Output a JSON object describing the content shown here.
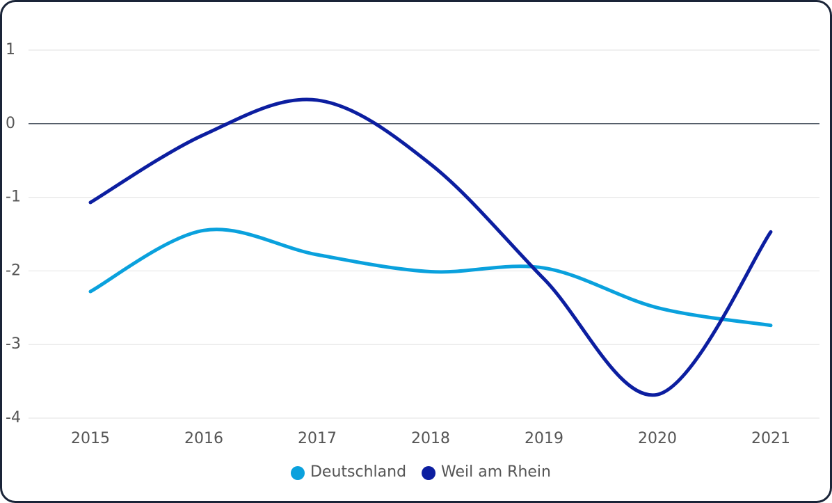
{
  "chart_data": {
    "type": "line",
    "categories": [
      "2015",
      "2016",
      "2017",
      "2018",
      "2019",
      "2020",
      "2021"
    ],
    "series": [
      {
        "name": "Deutschland",
        "color": "#0aa1dd",
        "values": [
          -2.28,
          -1.45,
          -1.78,
          -2.01,
          -1.96,
          -2.5,
          -2.74
        ]
      },
      {
        "name": "Weil am Rhein",
        "color": "#0c1ea0",
        "values": [
          -1.07,
          -0.15,
          0.32,
          -0.55,
          -2.11,
          -3.68,
          -1.47
        ]
      }
    ],
    "ylim": [
      -4,
      1
    ],
    "yticks": [
      1,
      0,
      -1,
      -2,
      -3,
      -4
    ],
    "grid": true,
    "legend": "bottom"
  }
}
